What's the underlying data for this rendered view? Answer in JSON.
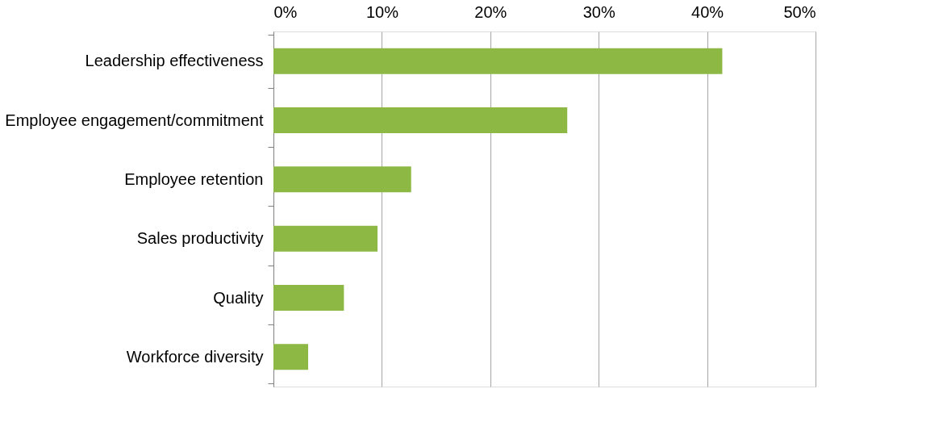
{
  "chart_data": {
    "type": "bar",
    "orientation": "horizontal",
    "categories": [
      "Leadership effectiveness",
      "Employee engagement/commitment",
      "Employee retention",
      "Sales productivity",
      "Quality",
      "Workforce diversity"
    ],
    "values": [
      41.4,
      27.1,
      12.7,
      9.6,
      6.5,
      3.2
    ],
    "color": "#8db843",
    "xlim": [
      0,
      50
    ],
    "xticks": [
      {
        "value": 0,
        "label": "0%"
      },
      {
        "value": 10,
        "label": "10%"
      },
      {
        "value": 20,
        "label": "20%"
      },
      {
        "value": 30,
        "label": "30%"
      },
      {
        "value": 40,
        "label": "40%"
      },
      {
        "value": 50,
        "label": "50%"
      }
    ],
    "grid": "x"
  }
}
